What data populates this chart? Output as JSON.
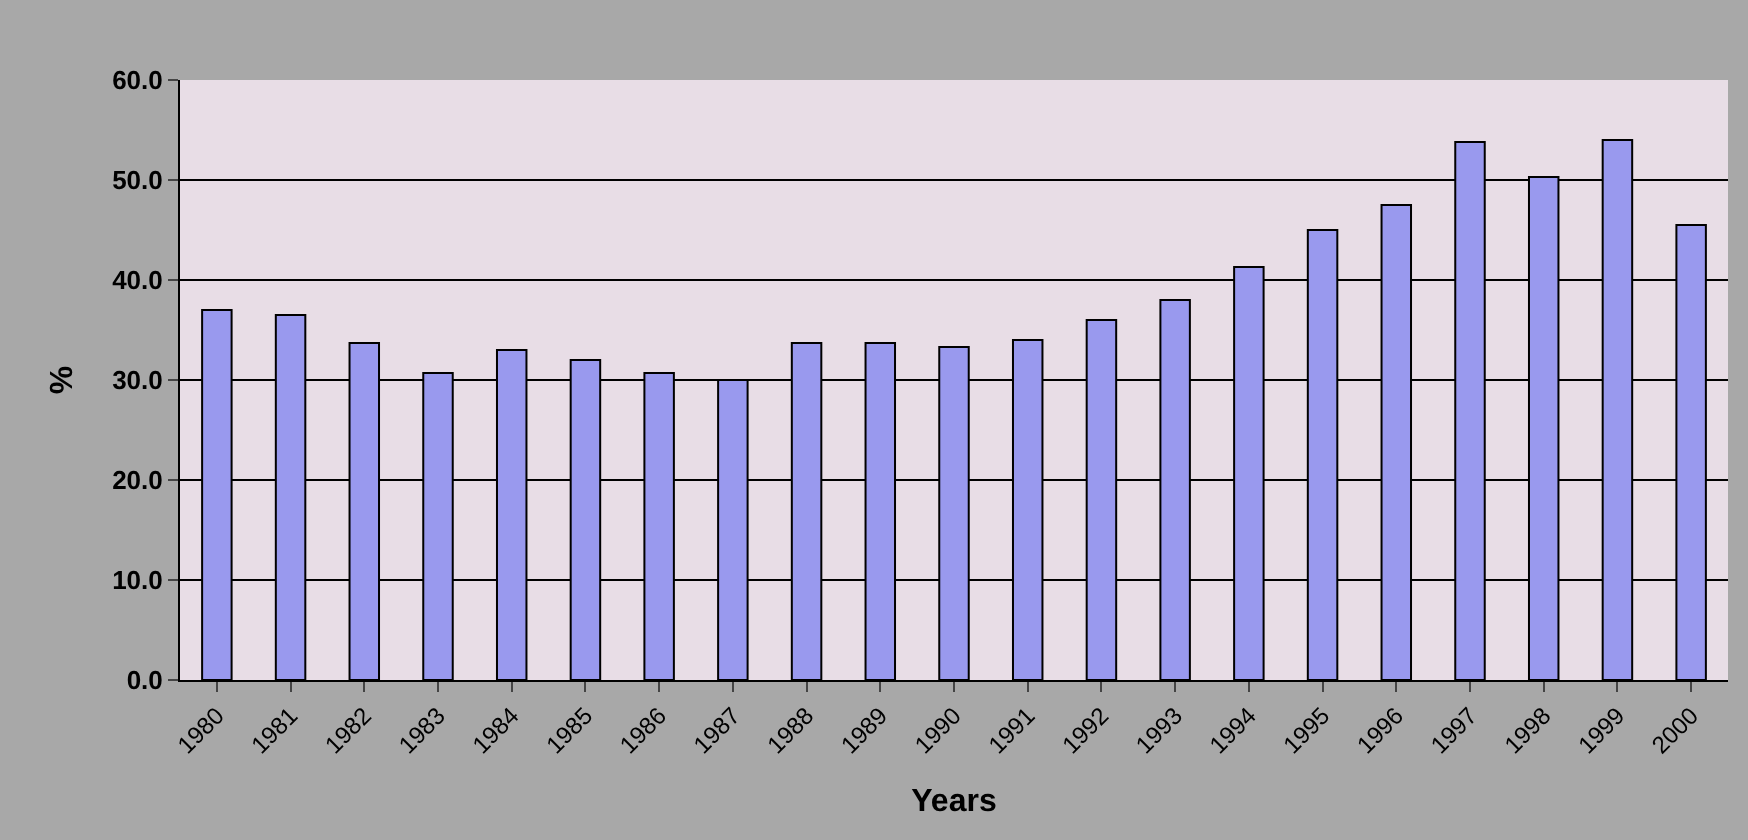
{
  "chart_data": {
    "type": "bar",
    "xlabel": "Years",
    "ylabel": "%",
    "categories": [
      "1980",
      "1981",
      "1982",
      "1983",
      "1984",
      "1985",
      "1986",
      "1987",
      "1988",
      "1989",
      "1990",
      "1991",
      "1992",
      "1993",
      "1994",
      "1995",
      "1996",
      "1997",
      "1998",
      "1999",
      "2000"
    ],
    "values": [
      37,
      36.5,
      33.7,
      30.7,
      33,
      32,
      30.7,
      30,
      33.7,
      33.7,
      33.3,
      34,
      36,
      38,
      41.3,
      45,
      47.5,
      53.8,
      50.3,
      54,
      45.5
    ],
    "color": "#9999ee",
    "ylim": [
      0,
      60
    ],
    "yticks": [
      {
        "value": 0,
        "label": "0.0"
      },
      {
        "value": 10,
        "label": "10.0"
      },
      {
        "value": 20,
        "label": "20.0"
      },
      {
        "value": 30,
        "label": "30.0"
      },
      {
        "value": 40,
        "label": "40.0"
      },
      {
        "value": 50,
        "label": "50.0"
      },
      {
        "value": 60,
        "label": "60.0"
      }
    ],
    "grid": "y"
  }
}
